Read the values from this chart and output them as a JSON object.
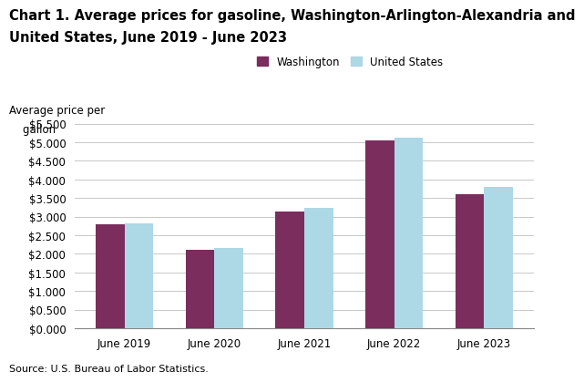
{
  "title_line1": "Chart 1. Average prices for gasoline, Washington-Arlington-Alexandria and",
  "title_line2": "United States, June 2019 - June 2023",
  "ylabel_line1": "Average price per",
  "ylabel_line2": "    gallon",
  "categories": [
    "June 2019",
    "June 2020",
    "June 2021",
    "June 2022",
    "June 2023"
  ],
  "washington": [
    2.8,
    2.1,
    3.15,
    5.06,
    3.61
  ],
  "united_states": [
    2.82,
    2.15,
    3.23,
    5.12,
    3.81
  ],
  "washington_color": "#7B2D5E",
  "us_color": "#ADD8E6",
  "ylim": [
    0,
    5.5
  ],
  "yticks": [
    0.0,
    0.5,
    1.0,
    1.5,
    2.0,
    2.5,
    3.0,
    3.5,
    4.0,
    4.5,
    5.0,
    5.5
  ],
  "ytick_labels": [
    "$0.000",
    "$0.500",
    "$1.000",
    "$1.500",
    "$2.000",
    "$2.500",
    "$3.000",
    "$3.500",
    "$4.000",
    "$4.500",
    "$5.000",
    "$5.500"
  ],
  "legend_washington": "Washington",
  "legend_us": "United States",
  "source": "Source: U.S. Bureau of Labor Statistics.",
  "bar_width": 0.32,
  "title_fontsize": 10.5,
  "axis_fontsize": 8.5,
  "tick_fontsize": 8.5,
  "legend_fontsize": 8.5,
  "source_fontsize": 8,
  "background_color": "#ffffff",
  "grid_color": "#c8c8c8"
}
